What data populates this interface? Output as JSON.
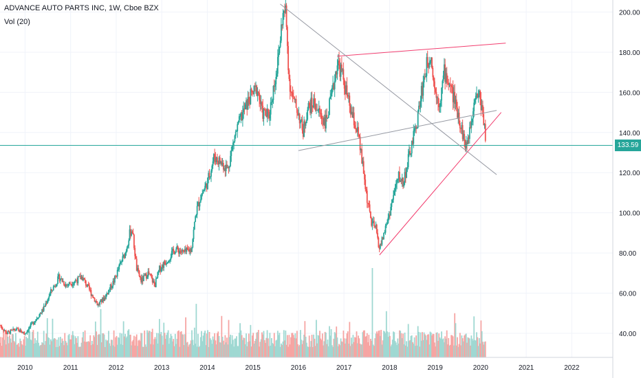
{
  "header": {
    "title": "ADVANCE AUTO PARTS INC, 1W, Cboe BZX",
    "volume": "Vol (20)"
  },
  "last_price_label": "133.59",
  "colors": {
    "up": "#26a69a",
    "down": "#ef5350",
    "volume_up": "#9fd8d2",
    "volume_down": "#f6a5a3",
    "trend_pink": "#f23d6e",
    "trend_gray": "#9598a1",
    "price_line": "#26a69a",
    "grid": "#f0f3fa"
  },
  "chart_data": {
    "type": "candlestick",
    "title": "ADVANCE AUTO PARTS INC, 1W, Cboe BZX",
    "x_ticks": [
      "2010",
      "2011",
      "2012",
      "2013",
      "2014",
      "2015",
      "2016",
      "2017",
      "2018",
      "2019",
      "2020",
      "2021",
      "2022"
    ],
    "y_ticks": [
      "40.00",
      "60.00",
      "80.00",
      "100.00",
      "120.00",
      "140.00",
      "160.00",
      "180.00",
      "200.00"
    ],
    "xlim": [
      2009.45,
      2022.9
    ],
    "ylim": [
      28,
      206
    ],
    "grid": true,
    "last_price": 133.59,
    "price_path": [
      [
        2009.45,
        44
      ],
      [
        2009.6,
        40
      ],
      [
        2009.8,
        42
      ],
      [
        2010.0,
        40
      ],
      [
        2010.2,
        46
      ],
      [
        2010.4,
        52
      ],
      [
        2010.55,
        60
      ],
      [
        2010.75,
        68
      ],
      [
        2010.9,
        64
      ],
      [
        2011.1,
        66
      ],
      [
        2011.25,
        68
      ],
      [
        2011.45,
        60
      ],
      [
        2011.6,
        54
      ],
      [
        2011.75,
        58
      ],
      [
        2011.95,
        66
      ],
      [
        2012.1,
        75
      ],
      [
        2012.2,
        80
      ],
      [
        2012.3,
        90
      ],
      [
        2012.35,
        92
      ],
      [
        2012.45,
        72
      ],
      [
        2012.55,
        66
      ],
      [
        2012.7,
        70
      ],
      [
        2012.85,
        64
      ],
      [
        2012.95,
        72
      ],
      [
        2013.1,
        76
      ],
      [
        2013.3,
        82
      ],
      [
        2013.5,
        80
      ],
      [
        2013.65,
        82
      ],
      [
        2013.75,
        100
      ],
      [
        2013.85,
        108
      ],
      [
        2014.0,
        115
      ],
      [
        2014.15,
        128
      ],
      [
        2014.3,
        125
      ],
      [
        2014.45,
        122
      ],
      [
        2014.6,
        138
      ],
      [
        2014.75,
        148
      ],
      [
        2014.95,
        158
      ],
      [
        2015.1,
        162
      ],
      [
        2015.2,
        150
      ],
      [
        2015.35,
        148
      ],
      [
        2015.45,
        162
      ],
      [
        2015.55,
        175
      ],
      [
        2015.65,
        198
      ],
      [
        2015.72,
        200
      ],
      [
        2015.8,
        165
      ],
      [
        2015.9,
        155
      ],
      [
        2016.0,
        150
      ],
      [
        2016.1,
        140
      ],
      [
        2016.2,
        152
      ],
      [
        2016.35,
        155
      ],
      [
        2016.45,
        150
      ],
      [
        2016.6,
        145
      ],
      [
        2016.75,
        160
      ],
      [
        2016.85,
        175
      ],
      [
        2016.95,
        170
      ],
      [
        2017.05,
        160
      ],
      [
        2017.15,
        150
      ],
      [
        2017.3,
        140
      ],
      [
        2017.4,
        125
      ],
      [
        2017.5,
        108
      ],
      [
        2017.6,
        95
      ],
      [
        2017.7,
        92
      ],
      [
        2017.78,
        82
      ],
      [
        2017.88,
        90
      ],
      [
        2018.0,
        100
      ],
      [
        2018.1,
        110
      ],
      [
        2018.2,
        118
      ],
      [
        2018.3,
        115
      ],
      [
        2018.4,
        125
      ],
      [
        2018.5,
        135
      ],
      [
        2018.6,
        145
      ],
      [
        2018.7,
        160
      ],
      [
        2018.8,
        172
      ],
      [
        2018.9,
        180
      ],
      [
        2019.0,
        160
      ],
      [
        2019.1,
        155
      ],
      [
        2019.2,
        170
      ],
      [
        2019.3,
        165
      ],
      [
        2019.4,
        158
      ],
      [
        2019.5,
        150
      ],
      [
        2019.6,
        140
      ],
      [
        2019.68,
        132
      ],
      [
        2019.78,
        145
      ],
      [
        2019.88,
        160
      ],
      [
        2019.98,
        158
      ],
      [
        2020.08,
        145
      ],
      [
        2020.12,
        133.59
      ]
    ],
    "volume_ylim": [
      0,
      14
    ],
    "drawings": [
      {
        "name": "upper-resistance",
        "color": "pink",
        "from": [
          2016.85,
          178
        ],
        "to": [
          2020.55,
          184.5
        ]
      },
      {
        "name": "rising-support",
        "color": "pink",
        "from": [
          2017.78,
          79
        ],
        "to": [
          2020.45,
          150
        ]
      },
      {
        "name": "falling-trend",
        "color": "gray",
        "from": [
          2015.6,
          204
        ],
        "to": [
          2020.35,
          119
        ]
      },
      {
        "name": "rising-trend",
        "color": "gray",
        "from": [
          2016.0,
          131
        ],
        "to": [
          2020.35,
          151
        ]
      }
    ]
  }
}
